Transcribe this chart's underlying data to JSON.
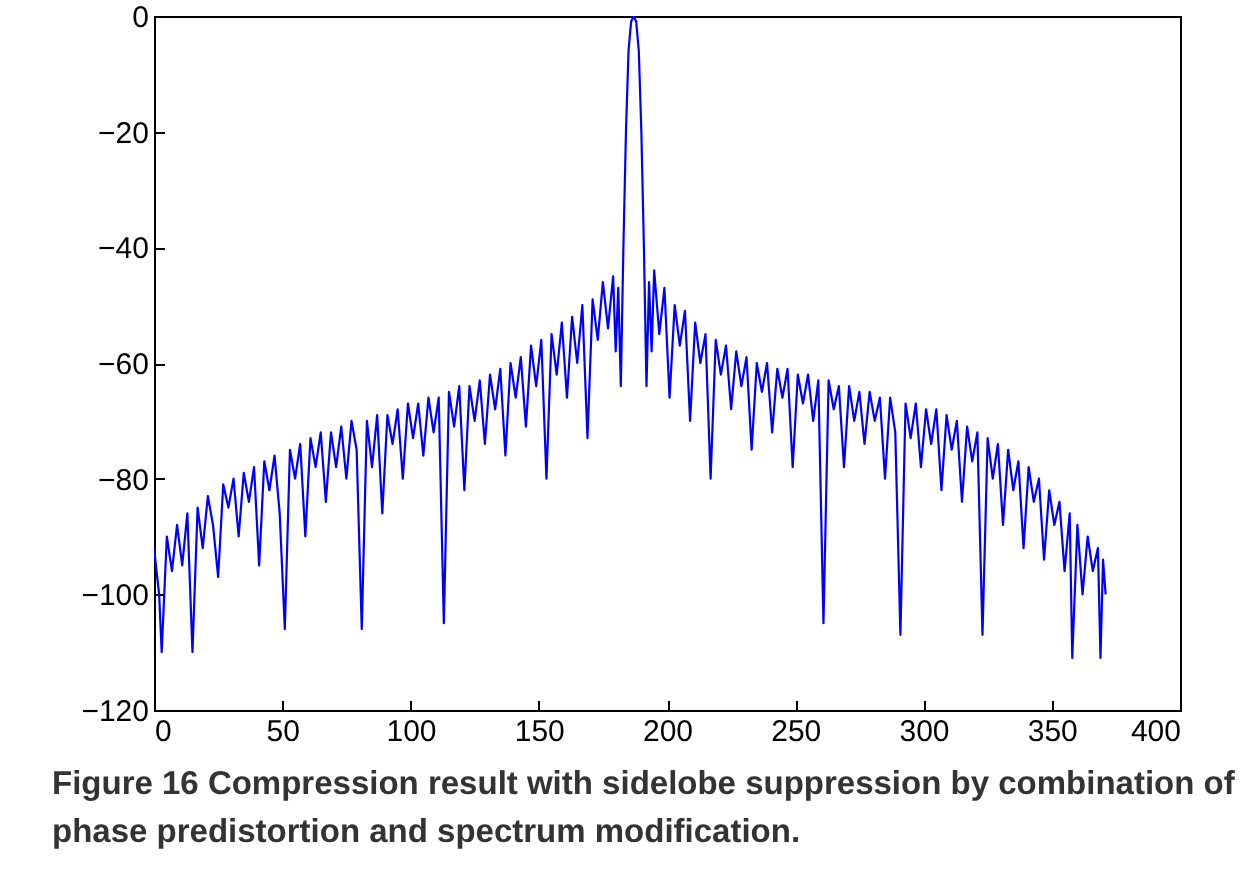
{
  "chart_data": {
    "type": "line",
    "annotations": [
      "Figure 16 Compression result with sidelobe suppression by combination of phase predistortion and spectrum modification."
    ],
    "xlim": [
      0,
      400
    ],
    "xticks": [
      0,
      50,
      100,
      150,
      200,
      250,
      300,
      350,
      400
    ],
    "ylim": [
      -120,
      0
    ],
    "yticks": [
      -120,
      -100,
      -80,
      -60,
      -40,
      -20,
      0
    ],
    "grid": false,
    "marker": "none",
    "line_style": "solid",
    "x": [
      0,
      2,
      3,
      5,
      7,
      9,
      11,
      13,
      15,
      17,
      19,
      21,
      23,
      25,
      27,
      29,
      31,
      33,
      35,
      37,
      39,
      41,
      43,
      45,
      47,
      49,
      51,
      53,
      55,
      57,
      59,
      61,
      63,
      65,
      67,
      69,
      71,
      73,
      75,
      77,
      79,
      81,
      83,
      85,
      87,
      89,
      91,
      93,
      95,
      97,
      99,
      101,
      103,
      105,
      107,
      109,
      111,
      113,
      115,
      117,
      119,
      121,
      123,
      125,
      127,
      129,
      131,
      133,
      135,
      137,
      139,
      141,
      143,
      145,
      147,
      149,
      151,
      153,
      155,
      157,
      159,
      161,
      163,
      165,
      167,
      169,
      171,
      173,
      175,
      177,
      179,
      180,
      181,
      182,
      183,
      184,
      185,
      186,
      187,
      188,
      189,
      190,
      191,
      192,
      193,
      194,
      195,
      197,
      199,
      201,
      203,
      205,
      207,
      209,
      211,
      213,
      215,
      217,
      219,
      221,
      223,
      225,
      227,
      229,
      231,
      233,
      235,
      237,
      239,
      241,
      243,
      245,
      247,
      249,
      251,
      253,
      255,
      257,
      259,
      261,
      263,
      265,
      267,
      269,
      271,
      273,
      275,
      277,
      279,
      281,
      283,
      285,
      287,
      289,
      291,
      293,
      295,
      297,
      299,
      301,
      303,
      305,
      307,
      309,
      311,
      313,
      315,
      317,
      319,
      321,
      323,
      325,
      327,
      329,
      331,
      333,
      335,
      337,
      339,
      341,
      343,
      345,
      347,
      349,
      351,
      353,
      355,
      357,
      358,
      360,
      362,
      364,
      366,
      368,
      369,
      370,
      371
    ],
    "series": [
      {
        "color": "#0000ff",
        "values": [
          -92,
          -100,
          -110,
          -90,
          -96,
          -88,
          -95,
          -86,
          -110,
          -85,
          -92,
          -83,
          -88,
          -97,
          -81,
          -85,
          -80,
          -90,
          -79,
          -84,
          -78,
          -95,
          -77,
          -82,
          -76,
          -86,
          -106,
          -75,
          -80,
          -74,
          -90,
          -73,
          -78,
          -72,
          -84,
          -72,
          -78,
          -71,
          -80,
          -70,
          -75,
          -106,
          -70,
          -78,
          -69,
          -86,
          -69,
          -74,
          -68,
          -80,
          -67,
          -73,
          -67,
          -76,
          -66,
          -72,
          -66,
          -105,
          -65,
          -71,
          -64,
          -82,
          -64,
          -70,
          -63,
          -74,
          -62,
          -68,
          -61,
          -76,
          -60,
          -66,
          -59,
          -71,
          -57,
          -64,
          -56,
          -80,
          -55,
          -62,
          -53,
          -66,
          -52,
          -60,
          -50,
          -73,
          -49,
          -56,
          -46,
          -54,
          -45,
          -58,
          -47,
          -64,
          -40,
          -20,
          -6,
          -1,
          0,
          -1,
          -6,
          -20,
          -40,
          -64,
          -46,
          -58,
          -44,
          -55,
          -47,
          -66,
          -50,
          -57,
          -51,
          -70,
          -53,
          -60,
          -55,
          -80,
          -56,
          -62,
          -57,
          -68,
          -58,
          -64,
          -59,
          -75,
          -60,
          -65,
          -60,
          -72,
          -61,
          -66,
          -61,
          -78,
          -62,
          -67,
          -62,
          -70,
          -63,
          -105,
          -63,
          -68,
          -64,
          -78,
          -64,
          -70,
          -65,
          -74,
          -65,
          -70,
          -66,
          -80,
          -66,
          -72,
          -107,
          -67,
          -73,
          -67,
          -78,
          -68,
          -74,
          -68,
          -82,
          -69,
          -75,
          -70,
          -84,
          -71,
          -77,
          -72,
          -107,
          -73,
          -80,
          -74,
          -88,
          -75,
          -82,
          -77,
          -92,
          -78,
          -84,
          -80,
          -94,
          -82,
          -88,
          -84,
          -96,
          -86,
          -111,
          -88,
          -100,
          -90,
          -96,
          -92,
          -111,
          -94,
          -100
        ]
      }
    ]
  }
}
